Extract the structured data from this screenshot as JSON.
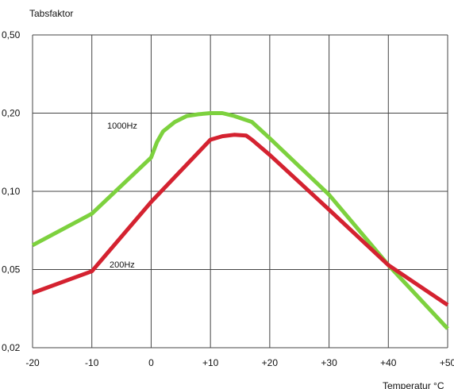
{
  "chart_data": {
    "type": "line",
    "ylabel": "Tabsfaktor",
    "xlabel": "Temperatur °C",
    "xlim": [
      -20,
      50
    ],
    "ylim": [
      0.02,
      0.5
    ],
    "yscale": "log",
    "grid": true,
    "x_ticks": [
      -20,
      -10,
      0,
      10,
      20,
      30,
      40,
      50
    ],
    "x_tick_labels": [
      "-20",
      "-10",
      "0",
      "+10",
      "+20",
      "+30",
      "+40",
      "+50"
    ],
    "y_ticks": [
      0.02,
      0.05,
      0.1,
      0.2,
      0.5
    ],
    "y_tick_labels": [
      "0,02",
      "0,05",
      "0,10",
      "0,20",
      "0,50"
    ],
    "series": [
      {
        "name": "1000Hz",
        "color": "#7dd13e",
        "x": [
          -20,
          -10,
          0,
          1,
          2,
          4,
          6,
          8,
          10,
          12,
          14,
          17,
          20,
          30,
          40,
          50
        ],
        "y": [
          0.062,
          0.082,
          0.135,
          0.155,
          0.17,
          0.185,
          0.195,
          0.198,
          0.2,
          0.2,
          0.195,
          0.185,
          0.16,
          0.097,
          0.052,
          0.025
        ]
      },
      {
        "name": "200Hz",
        "color": "#d42230",
        "x": [
          -20,
          -10,
          0,
          5,
          10,
          12,
          14,
          16,
          17,
          20,
          30,
          40,
          50
        ],
        "y": [
          0.038,
          0.049,
          0.091,
          0.12,
          0.158,
          0.163,
          0.165,
          0.164,
          0.158,
          0.138,
          0.085,
          0.052,
          0.033
        ]
      }
    ]
  }
}
